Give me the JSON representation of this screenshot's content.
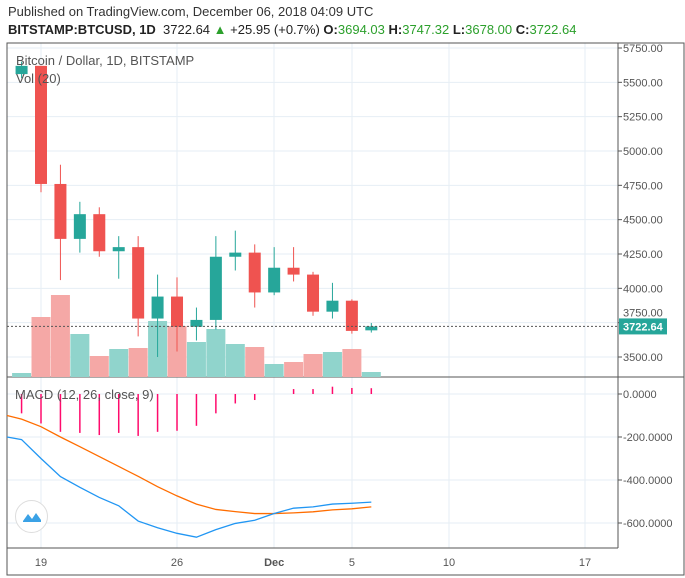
{
  "header": {
    "published": "Published on TradingView.com, December 06, 2018 04:09 UTC",
    "symbol": "BITSTAMP:BTCUSD, 1D",
    "last": "3722.64",
    "up_arrow": "▲",
    "change": "+25.95 (+0.7%)",
    "o_label": "O:",
    "o": "3694.03",
    "h_label": "H:",
    "h": "3747.32",
    "l_label": "L:",
    "l": "3678.00",
    "c_label": "C:",
    "c": "3722.64"
  },
  "legend": {
    "title": "Bitcoin / Dollar, 1D, BITSTAMP",
    "volume": "Vol (20)",
    "macd": "MACD (12, 26, close, 9)"
  },
  "price_axis": {
    "ticks": [
      "5750.00",
      "5500.00",
      "5250.00",
      "5000.00",
      "4750.00",
      "4500.00",
      "4250.00",
      "4000.00",
      "3750.00",
      "3500.00"
    ],
    "current": "3722.64"
  },
  "macd_axis": {
    "ticks": [
      "0.0000",
      "-200.0000",
      "-400.0000",
      "-600.0000"
    ]
  },
  "time_axis": {
    "ticks": [
      "19",
      "26",
      "Dec",
      "5",
      "10",
      "17"
    ]
  },
  "colors": {
    "up": "#26a69a",
    "down": "#ef5350",
    "vol_up": "#90d4cc",
    "vol_down": "#f5a8a6",
    "macd": "#2196f3",
    "signal": "#ff6d00",
    "histogram": "#ff0a6c"
  },
  "chart_data": [
    {
      "type": "candlestick",
      "title": "Bitcoin / Dollar, 1D, BITSTAMP",
      "x": [
        "Nov 18",
        "Nov 19",
        "Nov 20",
        "Nov 21",
        "Nov 22",
        "Nov 23",
        "Nov 24",
        "Nov 25",
        "Nov 26",
        "Nov 27",
        "Nov 28",
        "Nov 29",
        "Nov 30",
        "Dec 1",
        "Dec 2",
        "Dec 3",
        "Dec 4",
        "Dec 5",
        "Dec 6"
      ],
      "open": [
        5560,
        5620,
        4760,
        4360,
        4540,
        4270,
        4300,
        3780,
        3940,
        3720,
        3770,
        4230,
        4260,
        3970,
        4150,
        4100,
        3830,
        3910,
        3694.03
      ],
      "high": [
        5650,
        5620,
        4900,
        4630,
        4590,
        4380,
        4380,
        4100,
        4080,
        3860,
        4380,
        4420,
        4320,
        4300,
        4300,
        4120,
        4040,
        3920,
        3747.32
      ],
      "low": [
        5530,
        4700,
        4060,
        4260,
        4230,
        4070,
        3650,
        3500,
        3540,
        3620,
        3700,
        4130,
        3860,
        3950,
        4050,
        3800,
        3780,
        3670,
        3678.0
      ],
      "close": [
        5620,
        4760,
        4360,
        4540,
        4270,
        4300,
        3780,
        3940,
        3720,
        3770,
        4230,
        4260,
        3970,
        4150,
        4100,
        3830,
        3910,
        3690,
        3722.64
      ],
      "volume_relative": [
        4,
        60,
        82,
        43,
        21,
        28,
        29,
        56,
        51,
        35,
        48,
        33,
        30,
        13,
        15,
        23,
        25,
        28,
        5
      ],
      "ylim": [
        3400,
        5800
      ]
    },
    {
      "type": "line",
      "title": "MACD (12, 26, close, 9)",
      "x": [
        "Nov 17",
        "Nov 18",
        "Nov 19",
        "Nov 20",
        "Nov 21",
        "Nov 22",
        "Nov 23",
        "Nov 24",
        "Nov 25",
        "Nov 26",
        "Nov 27",
        "Nov 28",
        "Nov 29",
        "Nov 30",
        "Dec 1",
        "Dec 2",
        "Dec 3",
        "Dec 4",
        "Dec 5",
        "Dec 6"
      ],
      "macd": [
        -200,
        -212,
        -300,
        -384,
        -434,
        -481,
        -520,
        -591,
        -622,
        -648,
        -666,
        -631,
        -602,
        -587,
        -556,
        -531,
        -525,
        -512,
        -508,
        -503
      ],
      "signal": [
        -100,
        -117,
        -152,
        -200,
        -245,
        -291,
        -337,
        -383,
        -431,
        -474,
        -512,
        -537,
        -547,
        -556,
        -556,
        -553,
        -548,
        -539,
        -534,
        -525
      ],
      "histogram": [
        null,
        -90,
        -137,
        -176,
        -181,
        -191,
        -181,
        -195,
        -176,
        -171,
        -148,
        -90,
        -44,
        -28,
        0,
        23,
        23,
        34,
        28,
        27
      ],
      "ylim": [
        -720,
        80
      ]
    }
  ]
}
